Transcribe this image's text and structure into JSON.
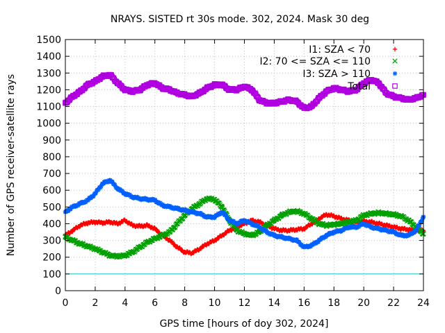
{
  "chart_data": {
    "type": "scatter",
    "title": "NRAYS. SISTED rt 30s mode. 302, 2024. Mask 30 deg",
    "xlabel": "GPS time [hours of doy 302, 2024]",
    "ylabel": "Number of GPS receiver-satellite rays",
    "xlim": [
      0,
      24
    ],
    "ylim": [
      0,
      1500
    ],
    "xticks": [
      0,
      2,
      4,
      6,
      8,
      10,
      12,
      14,
      16,
      18,
      20,
      22,
      24
    ],
    "yticks": [
      0,
      100,
      200,
      300,
      400,
      500,
      600,
      700,
      800,
      900,
      1000,
      1100,
      1200,
      1300,
      1400,
      1500
    ],
    "grid": true,
    "legend_position": "top-right",
    "threshold_line": {
      "value": 100,
      "color": "#00c8d0"
    },
    "series": [
      {
        "name": "I1: SZA < 70",
        "marker": "+",
        "color": "#ff0000",
        "x": [
          0,
          0.5,
          1,
          1.5,
          2,
          2.5,
          3,
          3.5,
          4,
          4.5,
          5,
          5.5,
          6,
          6.5,
          7,
          7.5,
          8,
          8.5,
          9,
          9.5,
          10,
          10.5,
          11,
          11.5,
          12,
          12.5,
          13,
          13.5,
          14,
          14.5,
          15,
          15.5,
          16,
          16.5,
          17,
          17.5,
          18,
          18.5,
          19,
          19.5,
          20,
          20.5,
          21,
          21.5,
          22,
          22.5,
          23,
          23.5,
          24
        ],
        "values": [
          330,
          360,
          390,
          405,
          410,
          405,
          410,
          400,
          420,
          390,
          385,
          390,
          370,
          330,
          300,
          260,
          230,
          225,
          250,
          280,
          300,
          330,
          360,
          380,
          400,
          420,
          410,
          390,
          370,
          360,
          360,
          365,
          370,
          400,
          430,
          455,
          445,
          430,
          420,
          410,
          415,
          410,
          400,
          390,
          380,
          370,
          365,
          360,
          360
        ]
      },
      {
        "name": "I2: 70 <= SZA <= 110",
        "marker": "x",
        "color": "#00a000",
        "x": [
          0,
          0.5,
          1,
          1.5,
          2,
          2.5,
          3,
          3.5,
          4,
          4.5,
          5,
          5.5,
          6,
          6.5,
          7,
          7.5,
          8,
          8.5,
          9,
          9.5,
          10,
          10.5,
          11,
          11.5,
          12,
          12.5,
          13,
          13.5,
          14,
          14.5,
          15,
          15.5,
          16,
          16.5,
          17,
          17.5,
          18,
          18.5,
          19,
          19.5,
          20,
          20.5,
          21,
          21.5,
          22,
          22.5,
          23,
          23.5,
          24
        ],
        "values": [
          320,
          300,
          280,
          265,
          250,
          230,
          210,
          205,
          210,
          230,
          260,
          290,
          310,
          330,
          350,
          400,
          450,
          490,
          520,
          550,
          545,
          500,
          420,
          360,
          340,
          330,
          350,
          390,
          420,
          450,
          470,
          475,
          460,
          430,
          400,
          390,
          395,
          400,
          410,
          420,
          450,
          460,
          465,
          460,
          455,
          445,
          420,
          380,
          340
        ]
      },
      {
        "name": "I3: SZA > 110",
        "marker": "*",
        "color": "#0060ff",
        "x": [
          0,
          0.5,
          1,
          1.5,
          2,
          2.5,
          3,
          3.5,
          4,
          4.5,
          5,
          5.5,
          6,
          6.5,
          7,
          7.5,
          8,
          8.5,
          9,
          9.5,
          10,
          10.5,
          11,
          11.5,
          12,
          12.5,
          13,
          13.5,
          14,
          14.5,
          15,
          15.5,
          16,
          16.5,
          17,
          17.5,
          18,
          18.5,
          19,
          19.5,
          20,
          20.5,
          21,
          21.5,
          22,
          22.5,
          23,
          23.5,
          24
        ],
        "values": [
          470,
          500,
          520,
          540,
          580,
          640,
          660,
          610,
          580,
          560,
          550,
          545,
          540,
          510,
          500,
          490,
          480,
          470,
          460,
          440,
          440,
          470,
          420,
          400,
          420,
          400,
          380,
          350,
          330,
          320,
          310,
          300,
          260,
          270,
          300,
          330,
          350,
          360,
          380,
          380,
          400,
          380,
          370,
          360,
          350,
          330,
          330,
          360,
          440
        ]
      },
      {
        "name": "Total",
        "marker": "square",
        "color": "#b000e0",
        "x": [
          0,
          0.5,
          1,
          1.5,
          2,
          2.5,
          3,
          3.5,
          4,
          4.5,
          5,
          5.5,
          6,
          6.5,
          7,
          7.5,
          8,
          8.5,
          9,
          9.5,
          10,
          10.5,
          11,
          11.5,
          12,
          12.5,
          13,
          13.5,
          14,
          14.5,
          15,
          15.5,
          16,
          16.5,
          17,
          17.5,
          18,
          18.5,
          19,
          19.5,
          20,
          20.5,
          21,
          21.5,
          22,
          22.5,
          23,
          23.5,
          24
        ],
        "values": [
          1120,
          1160,
          1190,
          1230,
          1250,
          1280,
          1290,
          1240,
          1200,
          1190,
          1200,
          1230,
          1240,
          1210,
          1200,
          1180,
          1170,
          1160,
          1180,
          1210,
          1230,
          1230,
          1200,
          1200,
          1220,
          1200,
          1140,
          1120,
          1120,
          1130,
          1140,
          1130,
          1090,
          1100,
          1150,
          1190,
          1210,
          1200,
          1190,
          1200,
          1240,
          1260,
          1240,
          1180,
          1160,
          1150,
          1140,
          1150,
          1170
        ]
      }
    ]
  }
}
